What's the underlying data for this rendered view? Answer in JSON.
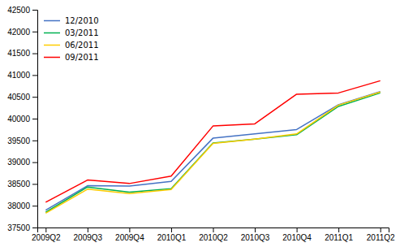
{
  "chart_data": {
    "type": "line",
    "categories": [
      "2009Q2",
      "2009Q3",
      "2009Q4",
      "2010Q1",
      "2010Q2",
      "2010Q3",
      "2010Q4",
      "2011Q1",
      "2011Q2"
    ],
    "series": [
      {
        "name": "12/2010",
        "color": "#4472C4",
        "values": [
          37900,
          38460,
          38450,
          38560,
          39550,
          39650,
          39750,
          40320,
          40620
        ]
      },
      {
        "name": "03/2011",
        "color": "#00B050",
        "values": [
          37850,
          38430,
          38310,
          38390,
          39440,
          39530,
          39630,
          40280,
          40590
        ]
      },
      {
        "name": "06/2011",
        "color": "#FFCC00",
        "values": [
          37830,
          38380,
          38280,
          38370,
          39430,
          39530,
          39650,
          40310,
          40610
        ]
      },
      {
        "name": "09/2011",
        "color": "#FF0000",
        "values": [
          38080,
          38590,
          38510,
          38680,
          39830,
          39880,
          40560,
          40590,
          40870
        ]
      }
    ],
    "ylim": [
      37500,
      42500
    ],
    "yticks": [
      37500,
      38000,
      38500,
      39000,
      39500,
      40000,
      40500,
      41000,
      41500,
      42000,
      42500
    ],
    "grid": false,
    "legend": "upper left"
  }
}
